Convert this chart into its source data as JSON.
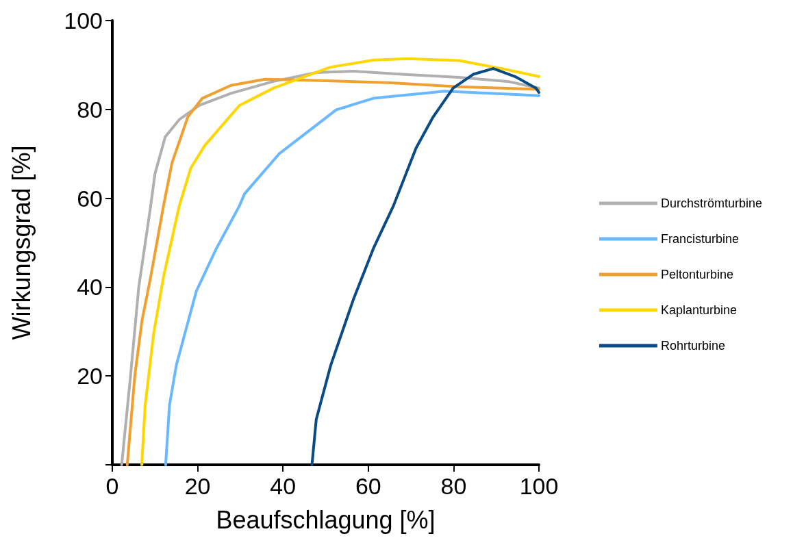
{
  "chart_data": {
    "type": "line",
    "xlabel": "Beaufschlagung [%]",
    "ylabel": "Wirkungsgrad [%]",
    "xlim": [
      0,
      100
    ],
    "ylim": [
      0,
      100
    ],
    "xticks": [
      0,
      20,
      40,
      60,
      80,
      100
    ],
    "yticks": [
      {
        "value": 0,
        "label": null
      },
      20,
      40,
      60,
      80,
      100
    ],
    "grid": false,
    "legend": "right",
    "marker": "none",
    "line_style": "solid",
    "series": [
      {
        "name": "Durchströmturbine",
        "color": "#b0b0b0",
        "x": [
          2.2,
          4.3,
          6.2,
          9.0,
          10.0,
          12.4,
          15.7,
          20.4,
          27.8,
          37.8,
          47.8,
          56.5,
          67.9,
          81.3,
          92.6,
          100
        ],
        "values": [
          0,
          20.3,
          40,
          58.3,
          65.5,
          73.8,
          77.7,
          80.9,
          83.6,
          86.3,
          88.3,
          88.6,
          87.9,
          87.2,
          86.3,
          84.8
        ]
      },
      {
        "name": "Francisturbine",
        "color": "#6ab8ff",
        "x": [
          12.5,
          13.4,
          15.0,
          19.7,
          24.4,
          29.8,
          31.0,
          39.1,
          52.5,
          61.2,
          77.9,
          100
        ],
        "values": [
          0,
          13.4,
          22.4,
          39.1,
          48.7,
          58.3,
          61.0,
          70.0,
          79.9,
          82.5,
          84.1,
          83.1
        ]
      },
      {
        "name": "Peltonturbine",
        "color": "#f0a030",
        "x": [
          3.5,
          5.3,
          7.0,
          9.0,
          12.0,
          14.0,
          17.7,
          21.1,
          27.8,
          35.8,
          44.5,
          64.5,
          81.3,
          100
        ],
        "values": [
          0,
          20.3,
          32.7,
          42.3,
          58.3,
          68.0,
          78.3,
          82.5,
          85.4,
          86.8,
          86.6,
          86.0,
          85.1,
          84.5
        ]
      },
      {
        "name": "Kaplanturbine",
        "color": "#ffd700",
        "x": [
          6.9,
          7.7,
          9.7,
          12.0,
          15.7,
          18.4,
          21.7,
          29.8,
          37.8,
          51.1,
          61.2,
          69.2,
          81.3,
          91.2,
          100
        ],
        "values": [
          0,
          13.4,
          29.6,
          42.3,
          58.3,
          66.8,
          71.9,
          80.9,
          84.8,
          89.5,
          91.1,
          91.4,
          91.0,
          89.2,
          87.4
        ]
      },
      {
        "name": "Rohrturbine",
        "color": "#0a4a86",
        "x": [
          46.8,
          47.8,
          51.2,
          56.5,
          61.2,
          65.9,
          71.2,
          75.2,
          79.9,
          84.6,
          89.3,
          94.6,
          99.3,
          100
        ],
        "values": [
          0,
          10.2,
          22.4,
          37.2,
          48.7,
          58.3,
          71.3,
          78.3,
          84.8,
          87.9,
          89.2,
          87.3,
          84.8,
          83.8
        ]
      }
    ]
  }
}
